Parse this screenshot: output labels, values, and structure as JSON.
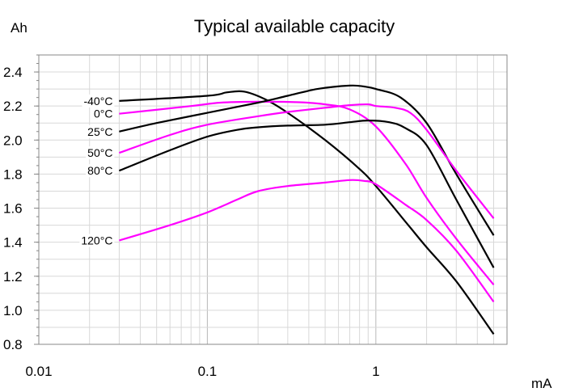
{
  "chart_data": {
    "type": "line",
    "title": "Typical available capacity",
    "ylabel": "Ah",
    "xlabel": "mA",
    "xscale": "log",
    "xlim": [
      0.01,
      6
    ],
    "ylim": [
      0.8,
      2.5
    ],
    "xticks": [
      "0.01",
      "0.1",
      "1"
    ],
    "yticks": [
      "0.8",
      "1.0",
      "1.2",
      "1.4",
      "1.6",
      "1.8",
      "2.0",
      "2.2",
      "2.4"
    ],
    "grid": true,
    "legend": "none",
    "series": [
      {
        "name": "-40°C",
        "color": "#000000",
        "points": [
          [
            0.03,
            2.23
          ],
          [
            0.1,
            2.26
          ],
          [
            0.13,
            2.28
          ],
          [
            0.165,
            2.285
          ],
          [
            0.22,
            2.24
          ],
          [
            0.3,
            2.16
          ],
          [
            0.5,
            2.0
          ],
          [
            0.8,
            1.83
          ],
          [
            1.0,
            1.73
          ],
          [
            1.5,
            1.52
          ],
          [
            2.0,
            1.37
          ],
          [
            3.0,
            1.17
          ],
          [
            5.0,
            0.86
          ]
        ]
      },
      {
        "name": "0°C",
        "color": "#ff00ff",
        "points": [
          [
            0.03,
            2.155
          ],
          [
            0.08,
            2.2
          ],
          [
            0.12,
            2.22
          ],
          [
            0.2,
            2.225
          ],
          [
            0.35,
            2.222
          ],
          [
            0.5,
            2.21
          ],
          [
            0.7,
            2.18
          ],
          [
            1.0,
            2.08
          ],
          [
            1.5,
            1.86
          ],
          [
            2.0,
            1.66
          ],
          [
            3.0,
            1.42
          ],
          [
            5.0,
            1.15
          ]
        ]
      },
      {
        "name": "25°C",
        "color": "#000000",
        "points": [
          [
            0.03,
            2.05
          ],
          [
            0.05,
            2.1
          ],
          [
            0.1,
            2.16
          ],
          [
            0.2,
            2.22
          ],
          [
            0.3,
            2.26
          ],
          [
            0.45,
            2.3
          ],
          [
            0.7,
            2.32
          ],
          [
            0.85,
            2.315
          ],
          [
            1.0,
            2.3
          ],
          [
            1.4,
            2.25
          ],
          [
            2.0,
            2.1
          ],
          [
            3.0,
            1.8
          ],
          [
            5.0,
            1.44
          ]
        ]
      },
      {
        "name": "50°C",
        "color": "#ff00ff",
        "points": [
          [
            0.03,
            1.925
          ],
          [
            0.06,
            2.03
          ],
          [
            0.1,
            2.09
          ],
          [
            0.2,
            2.14
          ],
          [
            0.3,
            2.165
          ],
          [
            0.5,
            2.19
          ],
          [
            0.7,
            2.205
          ],
          [
            0.9,
            2.21
          ],
          [
            1.0,
            2.2
          ],
          [
            1.3,
            2.19
          ],
          [
            1.6,
            2.16
          ],
          [
            2.0,
            2.06
          ],
          [
            3.0,
            1.82
          ],
          [
            5.0,
            1.54
          ]
        ]
      },
      {
        "name": "80°C",
        "color": "#000000",
        "points": [
          [
            0.03,
            1.82
          ],
          [
            0.06,
            1.94
          ],
          [
            0.1,
            2.02
          ],
          [
            0.15,
            2.06
          ],
          [
            0.2,
            2.075
          ],
          [
            0.3,
            2.085
          ],
          [
            0.5,
            2.09
          ],
          [
            0.7,
            2.105
          ],
          [
            0.9,
            2.115
          ],
          [
            1.2,
            2.105
          ],
          [
            1.5,
            2.07
          ],
          [
            2.0,
            1.97
          ],
          [
            3.0,
            1.65
          ],
          [
            5.0,
            1.25
          ]
        ]
      },
      {
        "name": "120°C",
        "color": "#ff00ff",
        "points": [
          [
            0.03,
            1.41
          ],
          [
            0.06,
            1.5
          ],
          [
            0.1,
            1.575
          ],
          [
            0.15,
            1.65
          ],
          [
            0.2,
            1.7
          ],
          [
            0.3,
            1.73
          ],
          [
            0.5,
            1.75
          ],
          [
            0.7,
            1.765
          ],
          [
            0.85,
            1.76
          ],
          [
            1.0,
            1.74
          ],
          [
            1.5,
            1.62
          ],
          [
            2.0,
            1.53
          ],
          [
            3.0,
            1.35
          ],
          [
            5.0,
            1.05
          ]
        ]
      }
    ]
  }
}
